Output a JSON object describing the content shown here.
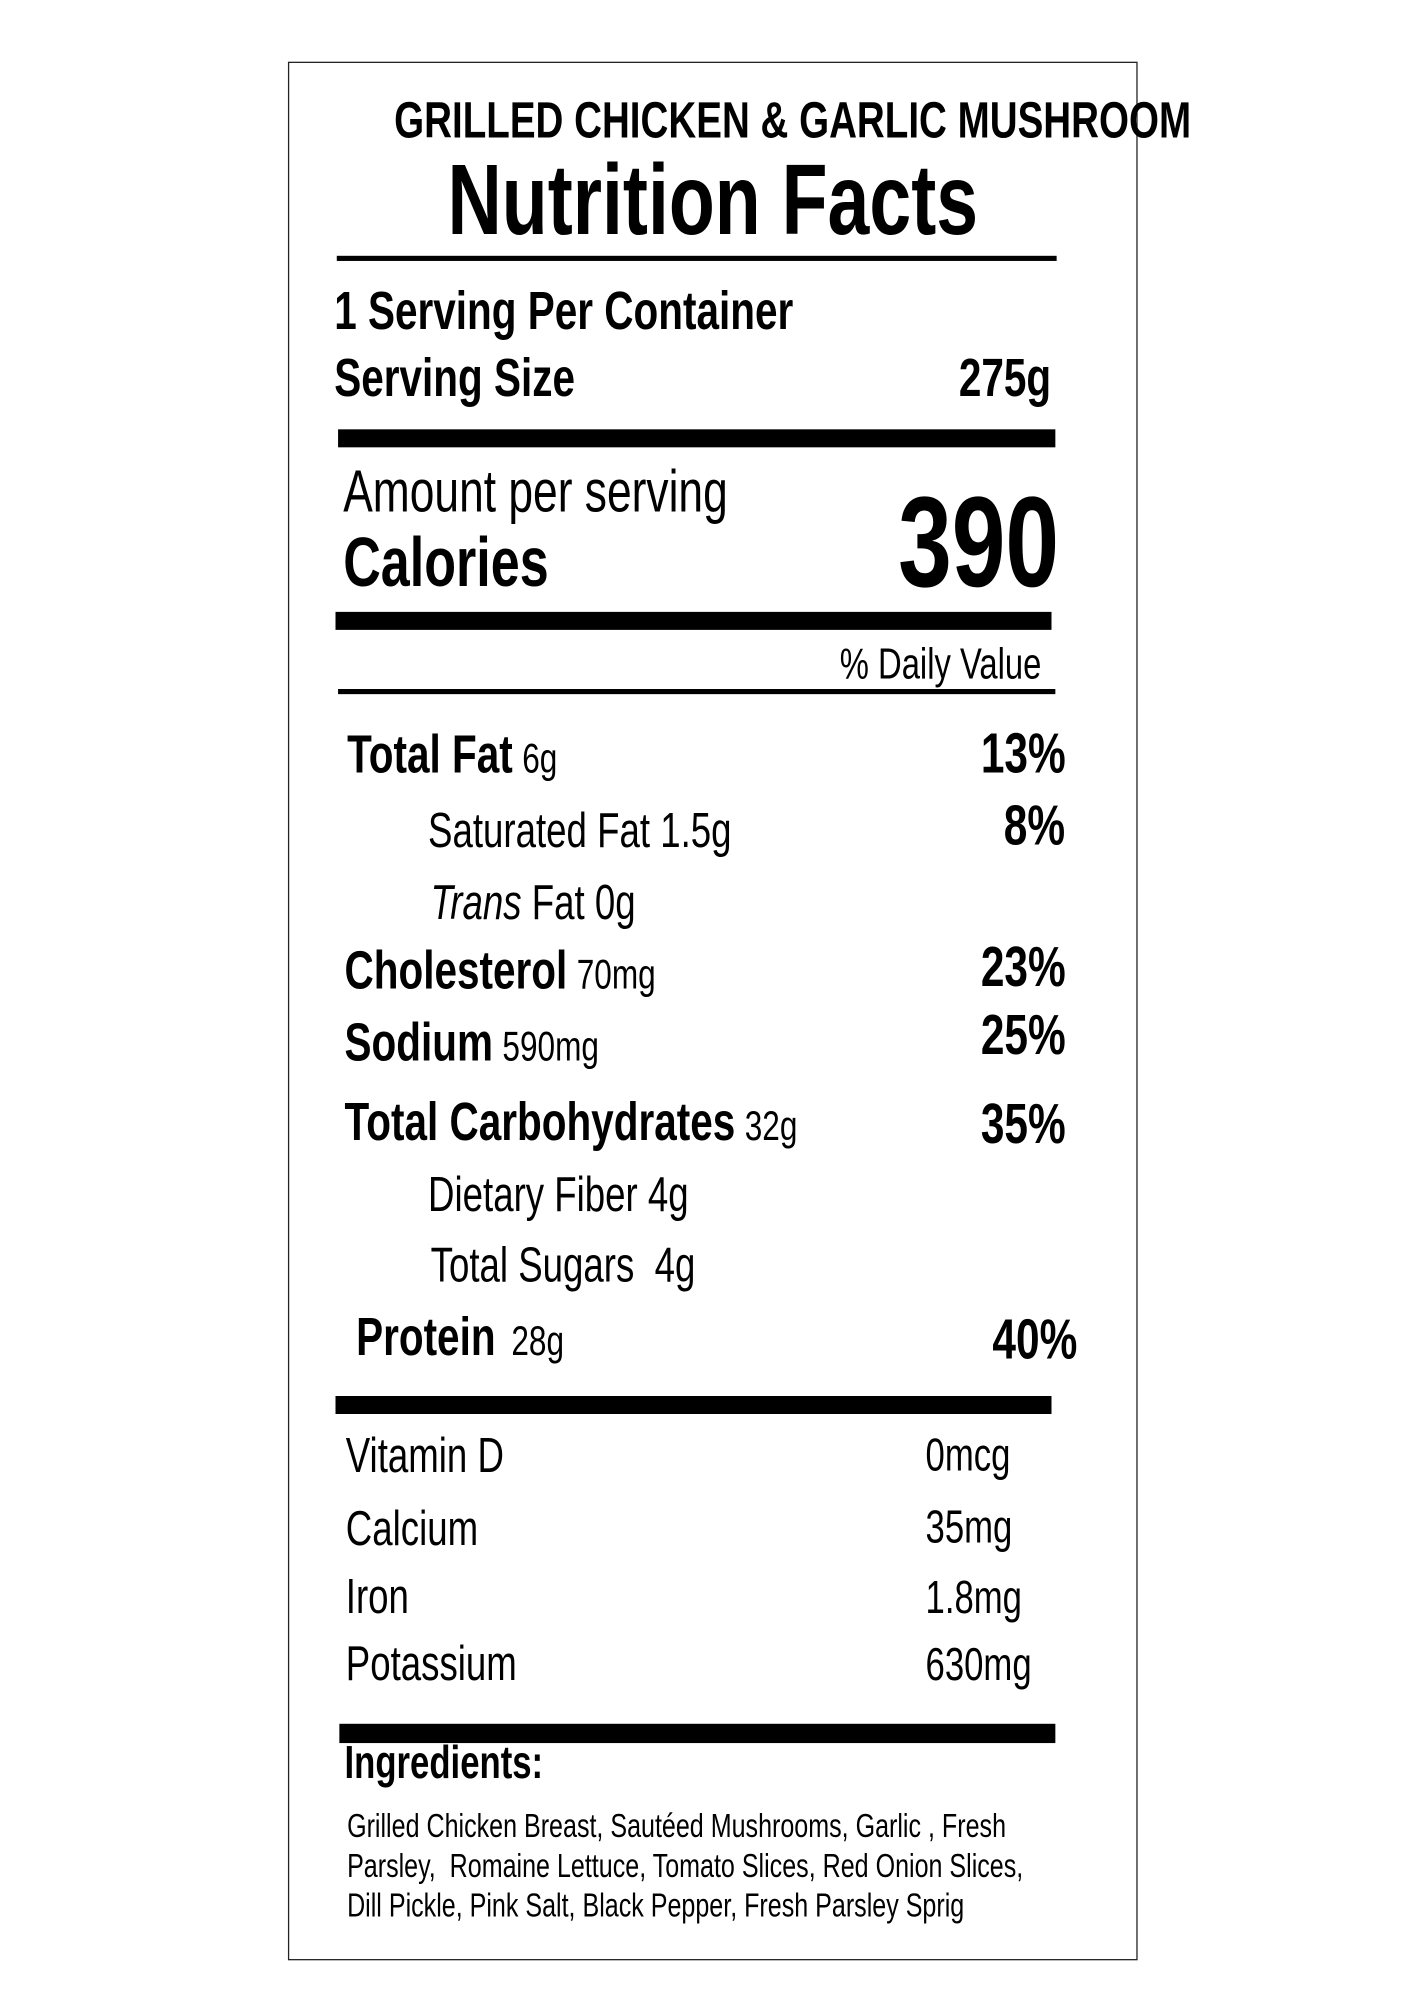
{
  "header": {
    "product": "GRILLED CHICKEN & GARLIC MUSHROOM",
    "title": "Nutrition Facts"
  },
  "serving": {
    "per_container": "1 Serving Per Container",
    "size_label": "Serving Size",
    "size": "275g"
  },
  "calories": {
    "amount_label": "Amount per serving",
    "label": "Calories",
    "value": "390"
  },
  "daily_value_header": "% Daily Value",
  "nutrients": {
    "total_fat": {
      "name": "Total Fat",
      "amount": "6g",
      "dv": "13%"
    },
    "saturated_fat": {
      "name": "Saturated Fat 1.5g",
      "dv": "8%"
    },
    "trans_fat": {
      "prefix": "Trans",
      "name": "Fat 0g"
    },
    "cholesterol": {
      "name": "Cholesterol",
      "amount": "70mg",
      "dv": "23%"
    },
    "sodium": {
      "name": "Sodium",
      "amount": "590mg",
      "dv": "25%"
    },
    "total_carbohydrates": {
      "name": "Total Carbohydrates",
      "amount": "32g",
      "dv": "35%"
    },
    "dietary_fiber": {
      "name": "Dietary Fiber",
      "amount": "4g"
    },
    "total_sugars": {
      "name": "Total Sugars",
      "amount": "4g"
    },
    "protein": {
      "name": "Protein",
      "amount": "28g",
      "dv": "40%"
    }
  },
  "vitamins": [
    {
      "name": "Vitamin D",
      "amount": "0mcg"
    },
    {
      "name": "Calcium",
      "amount": "35mg"
    },
    {
      "name": "Iron",
      "amount": "1.8mg"
    },
    {
      "name": "Potassium",
      "amount": "630mg"
    }
  ],
  "ingredients": {
    "heading": "Ingredients:",
    "lines": [
      "Grilled Chicken Breast, Sautéed Mushrooms, Garlic , Fresh",
      "Parsley,  Romaine Lettuce, Tomato Slices, Red Onion Slices,",
      "Dill Pickle, Pink Salt, Black Pepper, Fresh Parsley Sprig"
    ]
  }
}
